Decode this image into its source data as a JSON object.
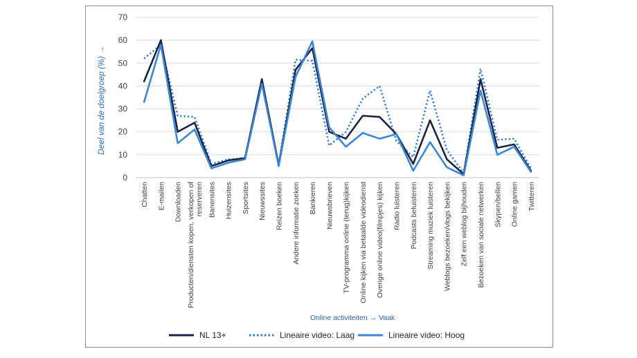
{
  "chart_data": {
    "type": "line",
    "ylabel": "Deel van de doelgroep (%) →",
    "xlabel": "Online activiteiten → Vaak",
    "ylim": [
      0,
      70
    ],
    "yticks": [
      0,
      10,
      20,
      30,
      40,
      50,
      60,
      70
    ],
    "grid": true,
    "legend_position": "bottom",
    "categories": [
      "Chatten",
      "E-mailen",
      "Downloaden",
      "Producten/diensten kopen, verkopen of reserveren",
      "Banensites",
      "Huizensites",
      "Sportsites",
      "Nieuwssites",
      "Reizen boeken",
      "Andere informatie zoeken",
      "Bankieren",
      "Nieuwsbrieven",
      "TV-programma online (terug)kijken",
      "Online kijken via betaalde videodienst",
      "Overige online video(filmpjes) kijken",
      "Radio luisteren",
      "Podcasts beluisteren",
      "Streaming muziek luisteren",
      "Weblogs bezoeken/vlogs bekijken",
      "Zelf een weblog bijhouden",
      "Bezoeken van sociale netwerken",
      "Skypen/bellen",
      "Online gamen",
      "Twitteren"
    ],
    "series": [
      {
        "name": "NL 13+",
        "color": "#1b2340",
        "style": "solid",
        "values": [
          42,
          60,
          20,
          24,
          5,
          7.5,
          8.5,
          43,
          5.5,
          47,
          56.5,
          20,
          17,
          27,
          26.5,
          19,
          6,
          25,
          8,
          1.5,
          43,
          13,
          14.5,
          3
        ]
      },
      {
        "name": "Lineaire video: Laag",
        "color": "#2f7ad8",
        "style": "dotted",
        "values": [
          52,
          58,
          27,
          26.5,
          6,
          8,
          8.5,
          42,
          5.5,
          51.5,
          51,
          14,
          20,
          34.5,
          40,
          16,
          9,
          38,
          12,
          2,
          47.5,
          16.5,
          17,
          4
        ]
      },
      {
        "name": "Lineaire video: Hoog",
        "color": "#3a86d6",
        "style": "solid",
        "values": [
          33,
          58,
          15,
          21,
          4,
          6.5,
          8,
          41,
          5,
          44,
          59.5,
          22,
          13.5,
          19.5,
          17,
          19,
          3,
          15.5,
          4.5,
          1,
          38,
          10,
          13.5,
          2.5
        ]
      }
    ]
  }
}
